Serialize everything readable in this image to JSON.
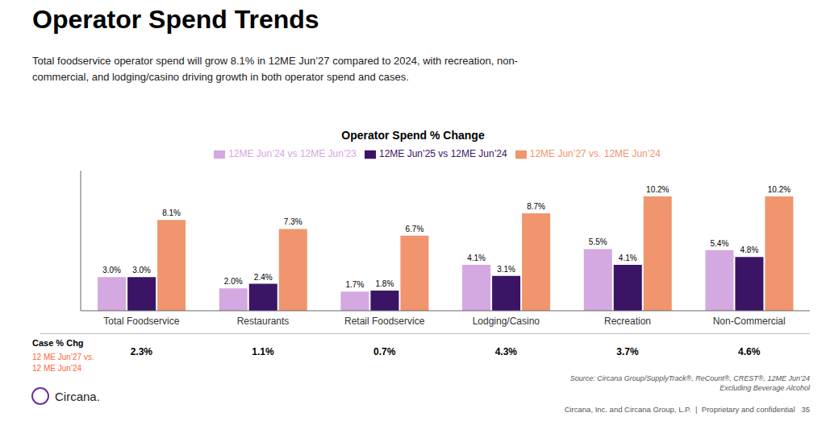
{
  "title": "Operator Spend Trends",
  "subtitle": "Total foodservice operator spend will grow 8.1% in 12ME Jun’27 compared to 2024, with recreation, non-\ncommercial, and lodging/casino driving growth in both operator spend and cases.",
  "chart_data": {
    "type": "bar",
    "title": "Operator Spend % Change",
    "categories": [
      "Total Foodservice",
      "Restaurants",
      "Retail Foodservice",
      "Lodging/Casino",
      "Recreation",
      "Non-Commercial"
    ],
    "series": [
      {
        "name": "12ME Jun’24 vs 12ME Jun’23",
        "color": "#d4a8e0",
        "values": [
          3.0,
          2.0,
          1.7,
          4.1,
          5.5,
          5.4
        ],
        "value_labels": [
          "3.0%",
          "2.0%",
          "1.7%",
          "4.1%",
          "5.5%",
          "5.4%"
        ]
      },
      {
        "name": "12ME Jun’25 vs 12ME Jun’24",
        "color": "#3b1466",
        "values": [
          3.0,
          2.4,
          1.8,
          3.1,
          4.1,
          4.8
        ],
        "value_labels": [
          "3.0%",
          "2.4%",
          "1.8%",
          "3.1%",
          "4.1%",
          "4.8%"
        ]
      },
      {
        "name": "12ME Jun’27 vs. 12ME Jun’24",
        "color": "#f0956e",
        "values": [
          8.1,
          7.3,
          6.7,
          8.7,
          10.2,
          10.2
        ],
        "value_labels": [
          "8.1%",
          "7.3%",
          "6.7%",
          "8.7%",
          "10.2%",
          "10.2%"
        ]
      }
    ],
    "ylim": [
      0,
      12.5
    ],
    "grid": false,
    "legend": "top",
    "data_labels": true,
    "tick_labels": "x"
  },
  "case_row": {
    "label": "Case % Chg",
    "sublabel": "12 ME Jun’27 vs.\n12 ME Jun’24",
    "color": "#ff6633",
    "values": [
      2.3,
      1.1,
      0.7,
      4.3,
      3.7,
      4.6
    ],
    "value_labels": [
      "2.3%",
      "1.1%",
      "0.7%",
      "4.3%",
      "3.7%",
      "4.6%"
    ]
  },
  "annotations": [
    "Source: Circana Group/SupplyTrack®, ReCount®, CREST®, 12ME Jun’24\nExcluding Beverage Alcohol",
    "Circana, Inc. and Circana Group, L.P.  |  Proprietary and confidential   35",
    "Circana."
  ]
}
